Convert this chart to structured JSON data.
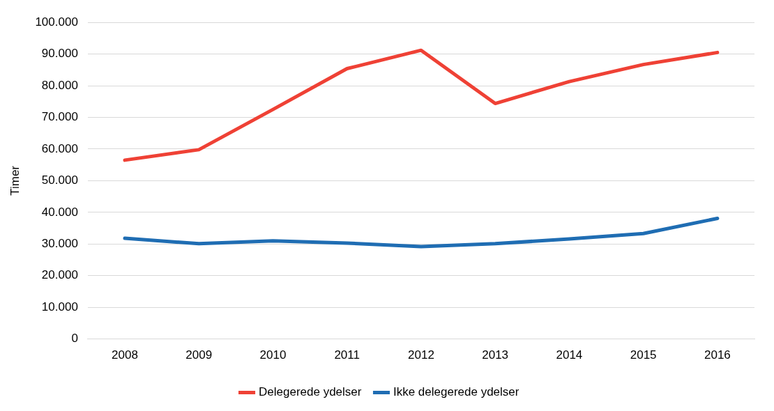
{
  "chart_data": {
    "type": "line",
    "ylabel": "Timer",
    "categories": [
      "2008",
      "2009",
      "2010",
      "2011",
      "2012",
      "2013",
      "2014",
      "2015",
      "2016"
    ],
    "series": [
      {
        "name": "Delegerede ydelser",
        "color": "#ef4135",
        "values": [
          56500,
          59800,
          72500,
          85400,
          91200,
          74400,
          81300,
          86700,
          90500
        ]
      },
      {
        "name": "Ikke delegerede ydelser",
        "color": "#1f6db3",
        "values": [
          31800,
          30100,
          31000,
          30300,
          29200,
          30100,
          31600,
          33300,
          38100
        ]
      }
    ],
    "ylim": [
      0,
      100000
    ],
    "yticks": [
      {
        "value": 0,
        "label": "0"
      },
      {
        "value": 10000,
        "label": "10.000"
      },
      {
        "value": 20000,
        "label": "20.000"
      },
      {
        "value": 30000,
        "label": "30.000"
      },
      {
        "value": 40000,
        "label": "40.000"
      },
      {
        "value": 50000,
        "label": "50.000"
      },
      {
        "value": 60000,
        "label": "60.000"
      },
      {
        "value": 70000,
        "label": "70.000"
      },
      {
        "value": 80000,
        "label": "80.000"
      },
      {
        "value": 90000,
        "label": "90.000"
      },
      {
        "value": 100000,
        "label": "100.000"
      }
    ],
    "grid": "y",
    "legend": "bottom"
  }
}
